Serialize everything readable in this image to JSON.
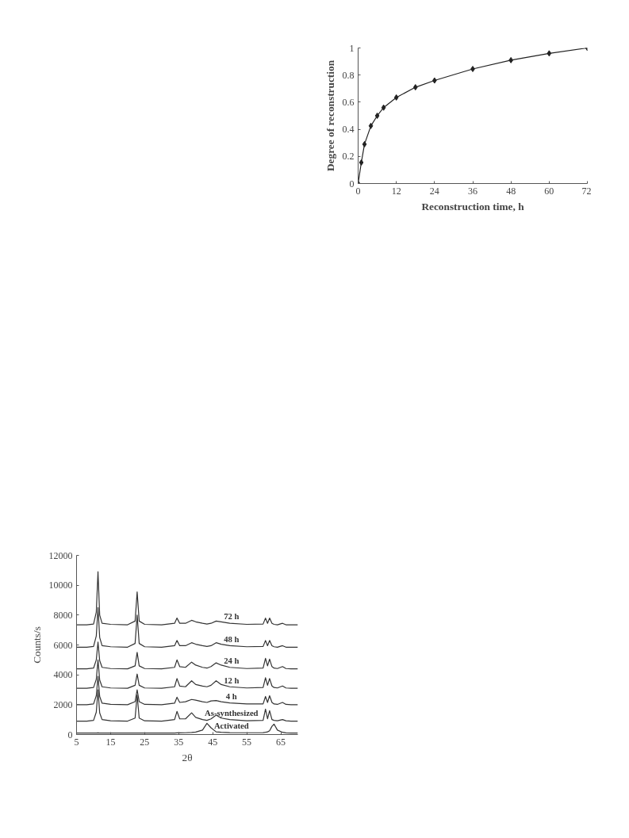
{
  "chart_data": [
    {
      "type": "line",
      "xlabel": "Reconstruction time, h",
      "ylabel": "Degree of reconstruction",
      "x": [
        0,
        1,
        2,
        4,
        6,
        8,
        12,
        18,
        24,
        36,
        48,
        60,
        72
      ],
      "series": [
        {
          "color": "#222222",
          "values": [
            0,
            0.155,
            0.29,
            0.425,
            0.5,
            0.56,
            0.635,
            0.71,
            0.76,
            0.845,
            0.91,
            0.96,
            1.0
          ]
        }
      ],
      "xlim": [
        0,
        72
      ],
      "xticks": [
        0,
        12,
        24,
        36,
        48,
        60,
        72
      ],
      "ylim": [
        0,
        1
      ],
      "yticks": [
        0,
        0.2,
        0.4,
        0.6,
        0.8,
        1
      ],
      "grid": false,
      "marker": "diamond",
      "line_style": "solid"
    },
    {
      "type": "line",
      "xlabel": "2θ",
      "ylabel": "Counts/s",
      "x": [
        5,
        8,
        10,
        10.8,
        11.3,
        11.8,
        12.5,
        15,
        20,
        22.2,
        22.8,
        23.4,
        25,
        30,
        33.8,
        34.5,
        35.3,
        37,
        38.8,
        40,
        42,
        43.3,
        44.5,
        46,
        47.5,
        50,
        55,
        59.8,
        60.5,
        61.1,
        61.7,
        62.4,
        63,
        64,
        65.5,
        66.5,
        68,
        70
      ],
      "series": [
        {
          "name": "72 h",
          "color": "#333333",
          "values": [
            7350,
            7350,
            7400,
            8200,
            10900,
            8000,
            7450,
            7380,
            7350,
            7600,
            9550,
            7600,
            7380,
            7350,
            7450,
            7800,
            7450,
            7450,
            7650,
            7550,
            7450,
            7400,
            7450,
            7600,
            7550,
            7450,
            7380,
            7400,
            7800,
            7450,
            7800,
            7450,
            7380,
            7350,
            7450,
            7350,
            7350,
            7350
          ]
        },
        {
          "name": "48 h",
          "color": "#333333",
          "values": [
            5850,
            5850,
            5900,
            6600,
            8500,
            6500,
            5950,
            5880,
            5850,
            6100,
            8000,
            6100,
            5880,
            5850,
            5950,
            6300,
            5950,
            5950,
            6150,
            6050,
            5950,
            5900,
            5950,
            6150,
            6050,
            5950,
            5880,
            5900,
            6300,
            5950,
            6300,
            5950,
            5880,
            5850,
            5950,
            5850,
            5850,
            5850
          ]
        },
        {
          "name": "24 h",
          "color": "#333333",
          "values": [
            4400,
            4400,
            4450,
            5000,
            6200,
            4950,
            4500,
            4420,
            4400,
            4600,
            5500,
            4600,
            4420,
            4400,
            4500,
            5000,
            4550,
            4500,
            4850,
            4650,
            4500,
            4450,
            4550,
            4800,
            4650,
            4500,
            4420,
            4450,
            5100,
            4600,
            5050,
            4550,
            4450,
            4420,
            4550,
            4420,
            4400,
            4400
          ]
        },
        {
          "name": "12 h",
          "color": "#333333",
          "values": [
            3100,
            3100,
            3150,
            3700,
            5000,
            3650,
            3200,
            3120,
            3100,
            3300,
            4050,
            3300,
            3120,
            3100,
            3200,
            3750,
            3250,
            3200,
            3600,
            3350,
            3250,
            3200,
            3300,
            3600,
            3350,
            3200,
            3120,
            3150,
            3800,
            3300,
            3750,
            3250,
            3150,
            3120,
            3250,
            3120,
            3100,
            3100
          ]
        },
        {
          "name": "4 h",
          "color": "#333333",
          "values": [
            2000,
            2000,
            2050,
            2600,
            3900,
            2550,
            2100,
            2020,
            2000,
            2200,
            3000,
            2200,
            2020,
            2000,
            2100,
            2500,
            2150,
            2200,
            2350,
            2300,
            2200,
            2150,
            2250,
            2280,
            2200,
            2120,
            2050,
            2050,
            2550,
            2150,
            2600,
            2150,
            2050,
            2020,
            2150,
            2020,
            2000,
            2000
          ]
        },
        {
          "name": "As-synthesized",
          "color": "#333333",
          "values": [
            900,
            900,
            950,
            1500,
            3000,
            1450,
            1000,
            920,
            900,
            1100,
            2650,
            1100,
            920,
            900,
            1000,
            1550,
            1050,
            1050,
            1450,
            1150,
            1000,
            950,
            1050,
            1300,
            1100,
            1000,
            920,
            950,
            1700,
            1050,
            1600,
            1000,
            950,
            920,
            1000,
            920,
            900,
            900
          ]
        },
        {
          "name": "Activated",
          "color": "#333333",
          "values": [
            100,
            100,
            100,
            100,
            110,
            100,
            100,
            100,
            100,
            100,
            100,
            100,
            100,
            100,
            100,
            110,
            110,
            120,
            140,
            170,
            300,
            750,
            450,
            180,
            150,
            130,
            120,
            130,
            150,
            180,
            250,
            550,
            700,
            300,
            150,
            110,
            100,
            100
          ]
        }
      ],
      "xlim": [
        5,
        70
      ],
      "xticks": [
        5,
        15,
        25,
        35,
        45,
        55,
        65
      ],
      "ylim": [
        0,
        12000
      ],
      "yticks": [
        0,
        2000,
        4000,
        6000,
        8000,
        10000,
        12000
      ],
      "grid": false,
      "line_style": "solid"
    }
  ]
}
